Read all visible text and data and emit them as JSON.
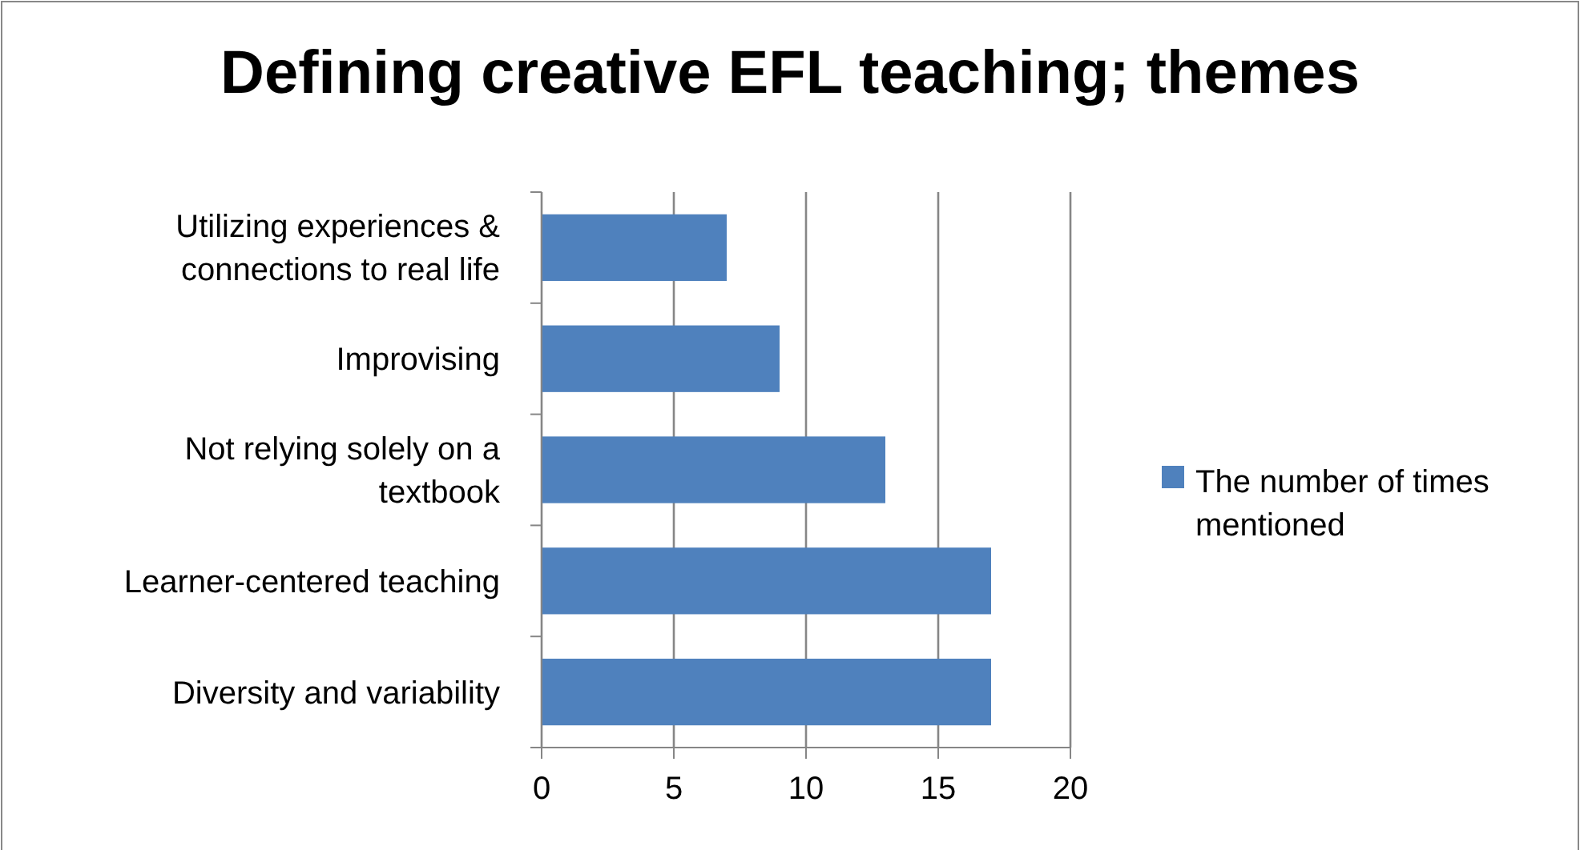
{
  "chart_data": {
    "type": "bar",
    "orientation": "horizontal",
    "title": "Defining creative EFL teaching; themes",
    "categories": [
      "Utilizing experiences & connections to real life",
      "Improvising",
      "Not relying solely on a textbook",
      "Learner-centered teaching",
      "Diversity and variability"
    ],
    "series": [
      {
        "name": "The number of times mentioned",
        "color": "#4f81bd",
        "values": [
          7,
          9,
          13,
          17,
          17
        ]
      }
    ],
    "xlim": [
      0,
      20
    ],
    "xticks": [
      0,
      5,
      10,
      15,
      20
    ],
    "grid": "x",
    "legend": "right"
  }
}
